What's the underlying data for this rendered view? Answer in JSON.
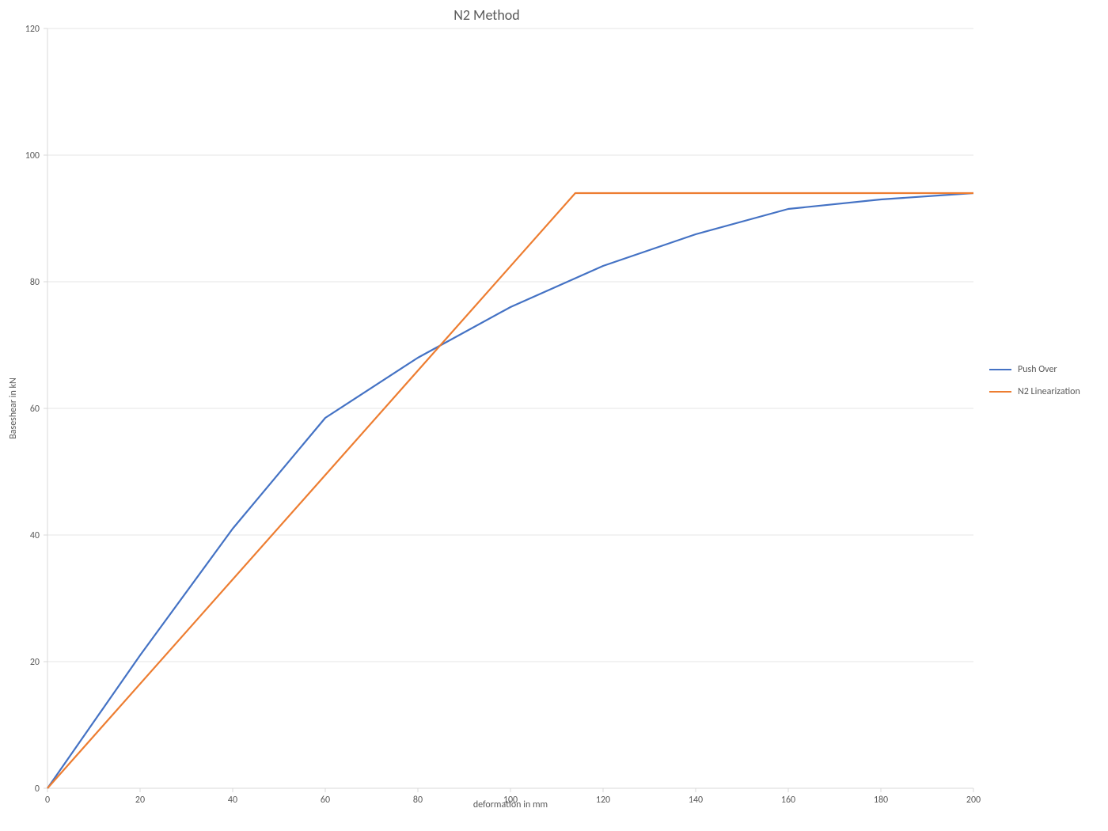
{
  "chart": {
    "type": "line",
    "title": "N2 Method",
    "title_fontsize": 18,
    "xlabel": "deformation in mm",
    "ylabel": "Baseshear in kN",
    "label_fontsize": 12,
    "tick_fontsize": 12,
    "background_color": "#ffffff",
    "grid_color": "#e6e6e6",
    "axis_color": "#d9d9d9",
    "text_color": "#595959",
    "line_width": 2.2,
    "x": {
      "min": 0,
      "max": 200,
      "ticks": [
        0,
        20,
        40,
        60,
        80,
        100,
        120,
        140,
        160,
        180,
        200
      ],
      "grid": false
    },
    "y": {
      "min": 0,
      "max": 120,
      "ticks": [
        0,
        20,
        40,
        60,
        80,
        100,
        120
      ],
      "grid": true
    },
    "series": [
      {
        "name": "Push Over",
        "color": "#4472c4",
        "x": [
          0,
          20,
          40,
          60,
          80,
          100,
          120,
          140,
          160,
          180,
          200
        ],
        "y": [
          0,
          21,
          41,
          58.5,
          68,
          76,
          82.5,
          87.5,
          91.5,
          93,
          94
        ]
      },
      {
        "name": "N2 Linearization",
        "color": "#ed7d31",
        "x": [
          0,
          114,
          200
        ],
        "y": [
          0,
          94,
          94
        ]
      }
    ],
    "legend": {
      "items": [
        "Push Over",
        "N2 Linearization"
      ],
      "fontsize": 12
    }
  }
}
